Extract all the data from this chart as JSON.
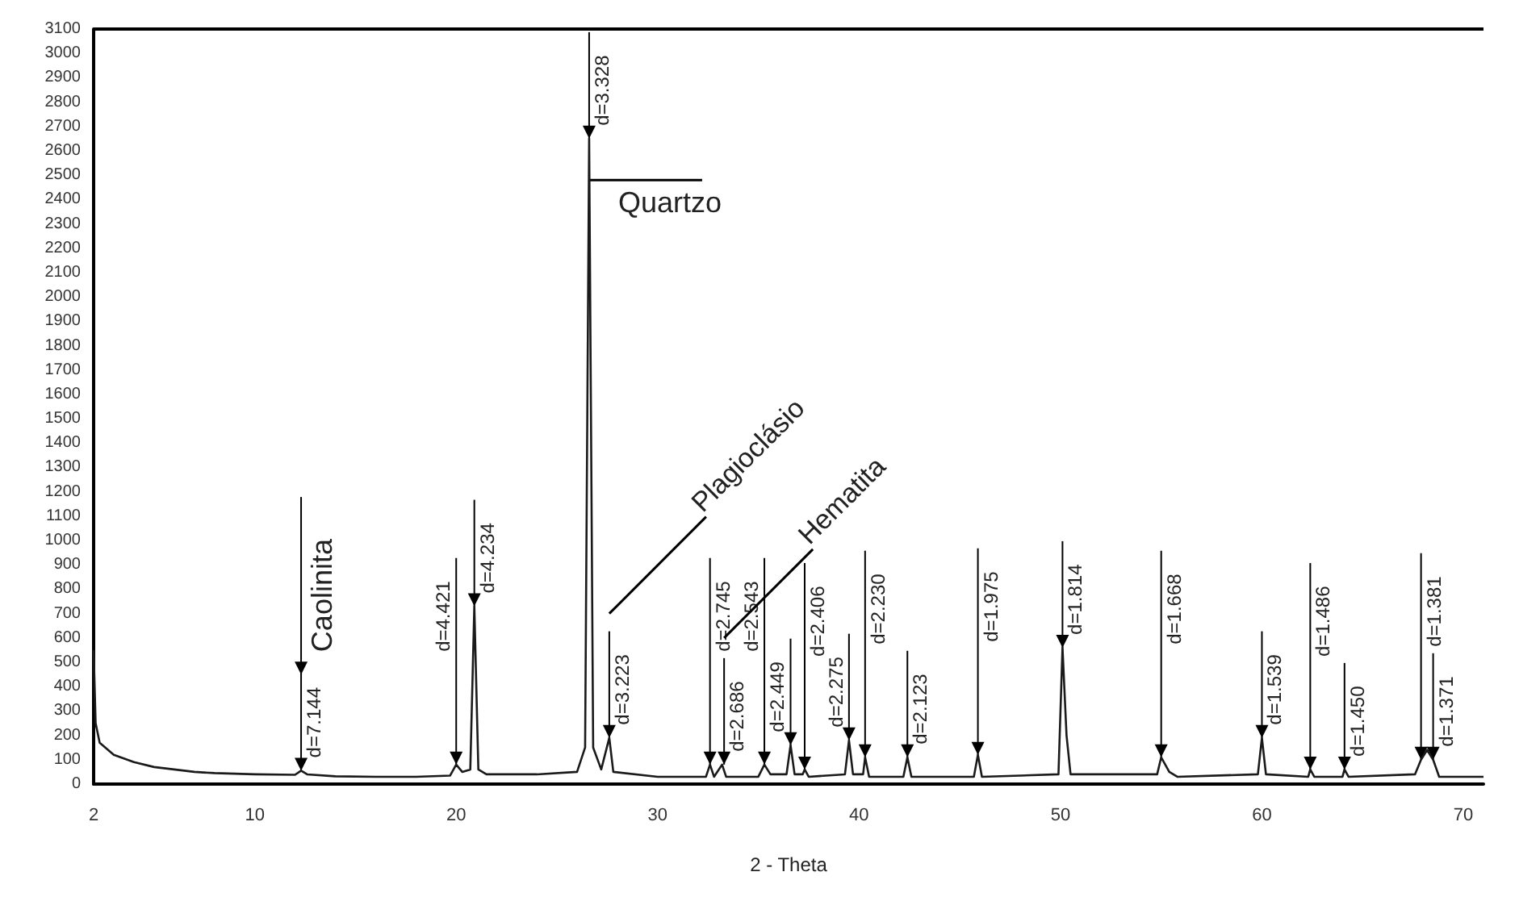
{
  "chart_data": {
    "type": "line",
    "xlabel": "2 - Theta",
    "x": [
      2,
      2.1,
      2.3,
      3,
      4,
      5,
      6,
      7,
      8,
      10,
      12,
      12.3,
      12.6,
      14,
      16,
      18,
      19.7,
      20,
      20.3,
      20.7,
      20.9,
      21.1,
      21.5,
      24,
      26,
      26.4,
      26.6,
      26.8,
      27.2,
      27.6,
      27.8,
      30,
      32.4,
      32.6,
      32.8,
      33.2,
      33.4,
      35,
      35.3,
      35.6,
      36.4,
      36.6,
      36.8,
      37.2,
      37.3,
      37.5,
      39.3,
      39.5,
      39.7,
      40.2,
      40.3,
      40.5,
      42.2,
      42.4,
      42.6,
      45.7,
      45.9,
      46.1,
      49.9,
      50.1,
      50.3,
      50.5,
      54.8,
      55,
      55.4,
      55.8,
      59.8,
      60,
      60.2,
      62.3,
      62.4,
      62.6,
      64,
      64.1,
      64.3,
      67.6,
      67.9,
      68.2,
      68.5,
      68.8,
      71
    ],
    "series": [
      {
        "color": "#1a1a1a",
        "values": [
          550,
          250,
          170,
          120,
          90,
          70,
          60,
          50,
          45,
          40,
          38,
          55,
          40,
          32,
          30,
          30,
          35,
          80,
          50,
          60,
          730,
          60,
          40,
          40,
          50,
          150,
          2650,
          150,
          60,
          190,
          50,
          30,
          30,
          80,
          30,
          80,
          30,
          30,
          80,
          40,
          40,
          160,
          40,
          40,
          60,
          30,
          40,
          180,
          40,
          40,
          110,
          30,
          30,
          110,
          30,
          30,
          120,
          30,
          40,
          560,
          200,
          40,
          40,
          110,
          50,
          30,
          40,
          190,
          40,
          30,
          60,
          30,
          30,
          60,
          30,
          40,
          100,
          140,
          100,
          30,
          30
        ]
      }
    ],
    "xlim": [
      2,
      71
    ],
    "xticks": [
      2,
      10,
      20,
      30,
      40,
      50,
      60,
      70
    ],
    "ylim": [
      0,
      3100
    ],
    "yticks": [
      0,
      100,
      200,
      300,
      400,
      500,
      600,
      700,
      800,
      900,
      1000,
      1100,
      1200,
      1300,
      1400,
      1500,
      1600,
      1700,
      1800,
      1900,
      2000,
      2100,
      2200,
      2300,
      2400,
      2500,
      2600,
      2700,
      2800,
      2900,
      3000,
      3100
    ],
    "grid": false,
    "marker": "none",
    "line_style": "solid",
    "annotations": [
      "Caolinita",
      "Quartzo",
      "Plagioclásio",
      "Hematita",
      {
        "text": "d=7.144",
        "x": 12.3,
        "y": 55
      },
      {
        "text": "d=4.421",
        "x": 20.0,
        "y": 80
      },
      {
        "text": "d=4.234",
        "x": 20.9,
        "y": 730
      },
      {
        "text": "d=3.328",
        "x": 26.6,
        "y": 2650
      },
      {
        "text": "d=3.223",
        "x": 27.6,
        "y": 190
      },
      {
        "text": "d=2.745",
        "x": 32.6,
        "y": 80
      },
      {
        "text": "d=2.686",
        "x": 33.3,
        "y": 80
      },
      {
        "text": "d=2.543",
        "x": 35.3,
        "y": 80
      },
      {
        "text": "d=2.449",
        "x": 36.6,
        "y": 160
      },
      {
        "text": "d=2.406",
        "x": 37.3,
        "y": 60
      },
      {
        "text": "d=2.275",
        "x": 39.5,
        "y": 180
      },
      {
        "text": "d=2.230",
        "x": 40.3,
        "y": 110
      },
      {
        "text": "d=2.123",
        "x": 42.4,
        "y": 110
      },
      {
        "text": "d=1.975",
        "x": 45.9,
        "y": 120
      },
      {
        "text": "d=1.814",
        "x": 50.1,
        "y": 560
      },
      {
        "text": "d=1.668",
        "x": 55.0,
        "y": 110
      },
      {
        "text": "d=1.539",
        "x": 60.0,
        "y": 190
      },
      {
        "text": "d=1.486",
        "x": 62.4,
        "y": 60
      },
      {
        "text": "d=1.450",
        "x": 64.1,
        "y": 60
      },
      {
        "text": "d=1.381",
        "x": 67.9,
        "y": 100
      },
      {
        "text": "d=1.371",
        "x": 68.5,
        "y": 100
      }
    ]
  }
}
